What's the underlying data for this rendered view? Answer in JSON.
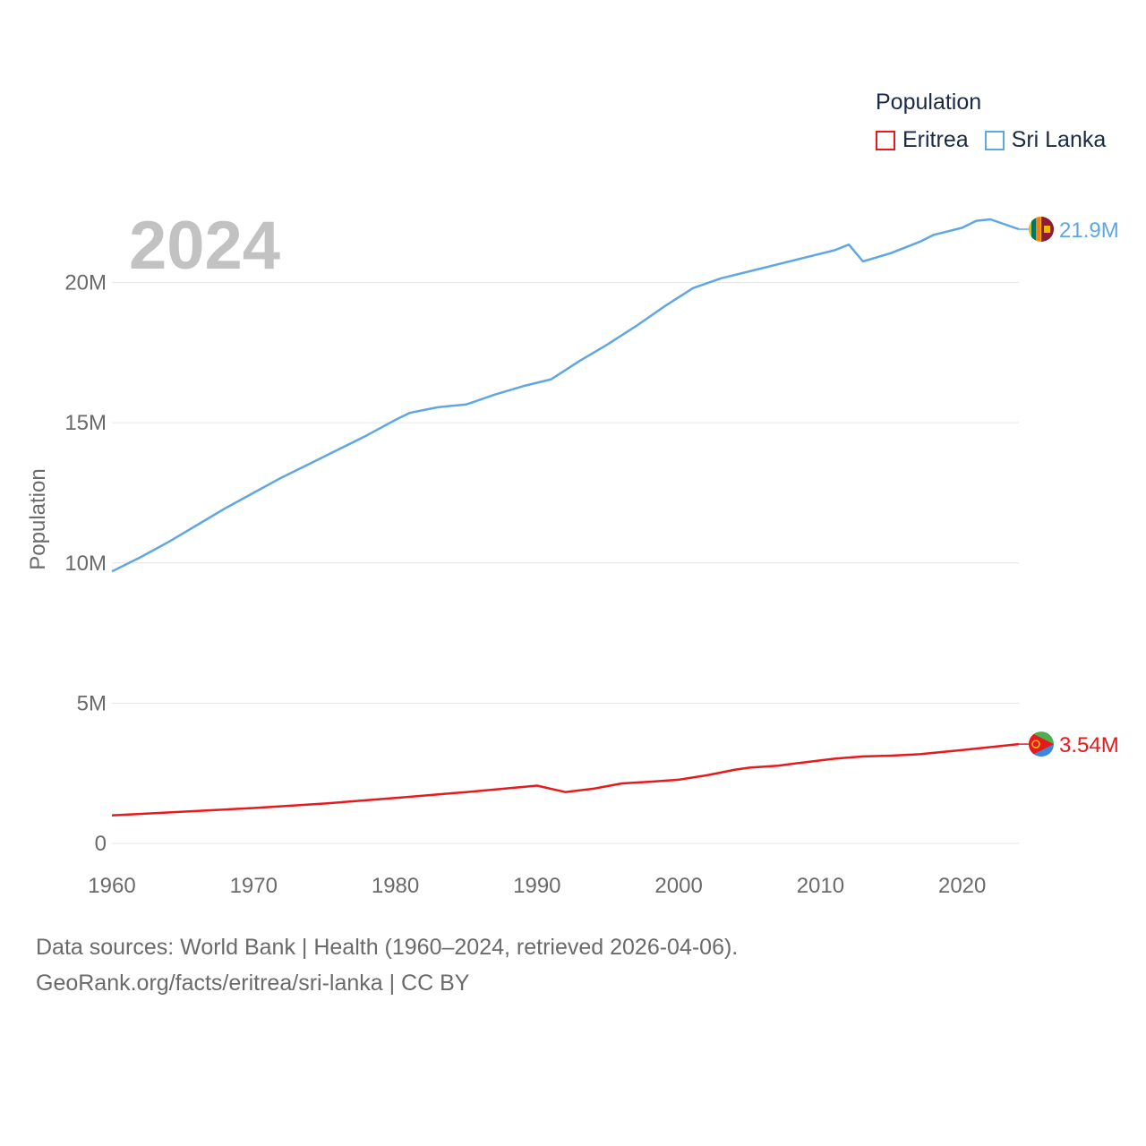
{
  "chart_data": {
    "type": "line",
    "title": "",
    "year_label": "2024",
    "xlabel": "",
    "ylabel": "Population",
    "xlim": [
      1960,
      2024
    ],
    "ylim": [
      0,
      21900000
    ],
    "x_ticks": [
      {
        "value": 1960,
        "label": "1960"
      },
      {
        "value": 1970,
        "label": "1970"
      },
      {
        "value": 1980,
        "label": "1980"
      },
      {
        "value": 1990,
        "label": "1990"
      },
      {
        "value": 2000,
        "label": "2000"
      },
      {
        "value": 2010,
        "label": "2010"
      },
      {
        "value": 2020,
        "label": "2020"
      }
    ],
    "y_ticks": [
      {
        "value": 0,
        "label": "0"
      },
      {
        "value": 5000000,
        "label": "5M"
      },
      {
        "value": 10000000,
        "label": "10M"
      },
      {
        "value": 15000000,
        "label": "15M"
      },
      {
        "value": 20000000,
        "label": "20M"
      }
    ],
    "legend_title": "Population",
    "series": [
      {
        "name": "Eritrea",
        "color": "#e8191b",
        "end_label": "3.54M",
        "flag": "eritrea-flag",
        "x": [
          1960,
          1965,
          1970,
          1975,
          1980,
          1985,
          1990,
          1992,
          1994,
          1996,
          1998,
          2000,
          2002,
          2004,
          2005,
          2007,
          2009,
          2011,
          2013,
          2015,
          2017,
          2020,
          2024
        ],
        "values": [
          1000000,
          1130000,
          1260000,
          1420000,
          1620000,
          1830000,
          2060000,
          1830000,
          1950000,
          2140000,
          2200000,
          2270000,
          2430000,
          2630000,
          2700000,
          2770000,
          2900000,
          3020000,
          3100000,
          3130000,
          3180000,
          3330000,
          3540000
        ]
      },
      {
        "name": "Sri Lanka",
        "color": "#5fa7e3",
        "end_label": "21.9M",
        "flag": "sri-lanka-flag",
        "x": [
          1960,
          1962,
          1964,
          1966,
          1968,
          1970,
          1972,
          1974,
          1976,
          1978,
          1980,
          1981,
          1982,
          1983,
          1984,
          1985,
          1987,
          1989,
          1991,
          1993,
          1995,
          1997,
          1999,
          2001,
          2003,
          2005,
          2007,
          2009,
          2011,
          2012,
          2013,
          2015,
          2017,
          2018,
          2020,
          2021,
          2022,
          2024
        ],
        "values": [
          9700000,
          10200000,
          10750000,
          11350000,
          11950000,
          12500000,
          13050000,
          13550000,
          14050000,
          14550000,
          15100000,
          15350000,
          15450000,
          15550000,
          15600000,
          15650000,
          16000000,
          16300000,
          16550000,
          17200000,
          17800000,
          18450000,
          19150000,
          19800000,
          20150000,
          20400000,
          20650000,
          20900000,
          21150000,
          21350000,
          20750000,
          21050000,
          21450000,
          21700000,
          21950000,
          22200000,
          22250000,
          21900000
        ]
      }
    ]
  },
  "footer": {
    "line1": "Data sources: World Bank | Health (1960–2024, retrieved 2026-04-06).",
    "line2": "GeoRank.org/facts/eritrea/sri-lanka | CC BY"
  }
}
